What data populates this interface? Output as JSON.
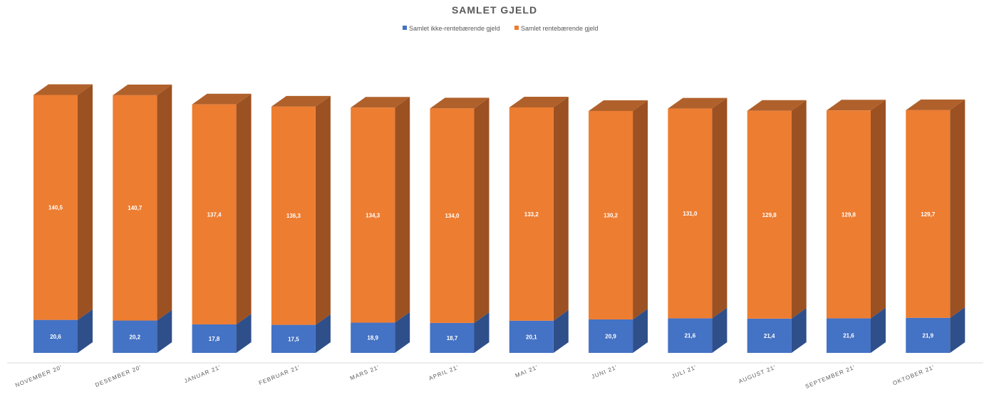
{
  "chart_data": {
    "type": "bar",
    "stacked": true,
    "three_d": true,
    "title": "SAMLET GJELD",
    "legend_position": "top",
    "grid": false,
    "categories": [
      "NOVEMBER 20'",
      "DESEMBER 20'",
      "JANUAR 21'",
      "FEBRUAR 21'",
      "MARS 21'",
      "APRIL 21'",
      "MAI 21'",
      "JUNI 21'",
      "JULI 21'",
      "AUGUST 21'",
      "SEPTEMBER 21'",
      "OKTOBER 21'"
    ],
    "series": [
      {
        "name": "Samlet ikke-rentebærende gjeld",
        "values": [
          20.6,
          20.2,
          17.8,
          17.5,
          18.9,
          18.7,
          20.1,
          20.9,
          21.6,
          21.4,
          21.6,
          21.9
        ],
        "labels": [
          "20,6",
          "20,2",
          "17,8",
          "17,5",
          "18,9",
          "18,7",
          "20,1",
          "20,9",
          "21,6",
          "21,4",
          "21,6",
          "21,9"
        ],
        "color": "#4472C4",
        "side_color": "#2F4F8A",
        "top_color": "#3A62A8"
      },
      {
        "name": "Samlet rentebærende gjeld",
        "values": [
          140.5,
          140.7,
          137.4,
          136.3,
          134.3,
          134.0,
          133.2,
          130.2,
          131.0,
          129.8,
          129.8,
          129.7
        ],
        "labels": [
          "140,5",
          "140,7",
          "137,4",
          "136,3",
          "134,3",
          "134,0",
          "133,2",
          "130,2",
          "131,0",
          "129,8",
          "129,8",
          "129,7"
        ],
        "color": "#ED7D31",
        "side_color": "#9C5122",
        "top_color": "#B0612B"
      }
    ],
    "ylim": [
      0,
      161.3
    ]
  }
}
